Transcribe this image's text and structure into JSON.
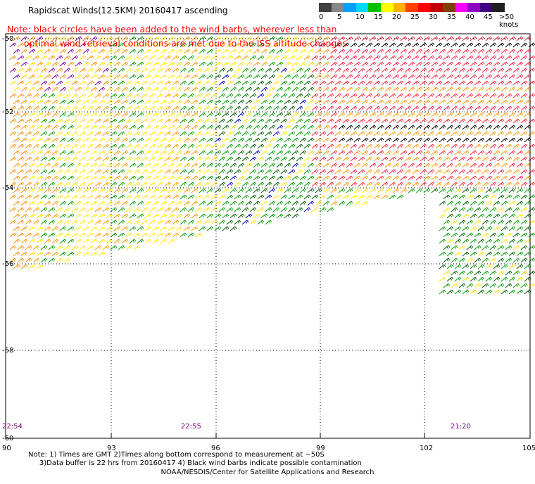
{
  "title": "Rapidscat Winds(12.5KM) 20160417 ascending",
  "note_line1": "Note: black circles have been added to the wind barbs, wherever less than",
  "note_line2": "      optimal wind retrieval conditions are met due to the ISS altitude changes",
  "legend": {
    "labels": [
      "0",
      "5",
      "10",
      "15",
      "20",
      "25",
      "30",
      "35",
      "40",
      "45",
      ">50 knots"
    ],
    "colors": [
      "#404040",
      "#888888",
      "#00a0ff",
      "#00d8ff",
      "#00c000",
      "#ffff00",
      "#ffb000",
      "#ff4000",
      "#ff0000",
      "#c00000",
      "#804000",
      "#ff00ff",
      "#9000c0",
      "#400080",
      "#202020"
    ]
  },
  "lat_labels": [
    "-50",
    "-52",
    "-54",
    "-56",
    "-58",
    "-60"
  ],
  "lon_labels": [
    "90",
    "93",
    "96",
    "99",
    "102",
    "105"
  ],
  "time_labels": [
    "22:54",
    "22:55",
    "21:20"
  ],
  "footnote_line1": "Note: 1) Times are GMT 2)Times along bottom correspond to measurement at ~50S",
  "footnote_line2": "     3)Data buffer is 22 hrs from 20160417 4) Black wind barbs indicate possible contamination",
  "credit": "NOAA/NESDIS/Center for Satellite Applications and Research"
}
